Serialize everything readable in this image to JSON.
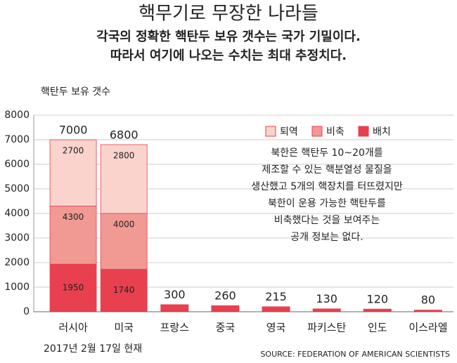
{
  "chart_data": {
    "type": "bar",
    "title": "핵무기로 무장한 나라들",
    "subtitle": [
      "각국의 정확한 핵탄두 보유 갯수는 국가 기밀이다.",
      "따라서 여기에 나오는 수치는 최대 추정치다."
    ],
    "ylabel": "핵탄두 보유 갯수",
    "categories": [
      "러시아",
      "미국",
      "프랑스",
      "중국",
      "영국",
      "파키스탄",
      "인도",
      "이스라엘"
    ],
    "totals": [
      7000,
      6800,
      300,
      260,
      215,
      130,
      120,
      80
    ],
    "series": [
      {
        "name": "배치",
        "color": "#e8404f",
        "values": [
          1950,
          1740,
          null,
          null,
          null,
          null,
          null,
          null
        ]
      },
      {
        "name": "비축",
        "color": "#f09a93",
        "values": [
          4300,
          4000,
          null,
          null,
          null,
          null,
          null,
          null
        ]
      },
      {
        "name": "퇴역",
        "color": "#f9d3cc",
        "values": [
          2700,
          2800,
          null,
          null,
          null,
          null,
          null,
          null
        ]
      }
    ],
    "ylim": [
      0,
      8000
    ],
    "yticks": [
      0,
      1000,
      2000,
      3000,
      4000,
      5000,
      6000,
      7000,
      8000
    ],
    "grid": true,
    "annotation": [
      "북한은 핵탄두 10~20개를",
      "제조할 수 있는 핵분열성 물질을",
      "생산했고 5개의 핵장치를 터뜨렸지만",
      "북한이 운용 가능한 핵탄두를",
      "비축했다는 것을 보여주는",
      "공개 정보는 없다."
    ],
    "note": "2017년 2월 17일 현재",
    "source": "SOURCE: FEDERATION OF AMERICAN SCIENTISTS"
  }
}
